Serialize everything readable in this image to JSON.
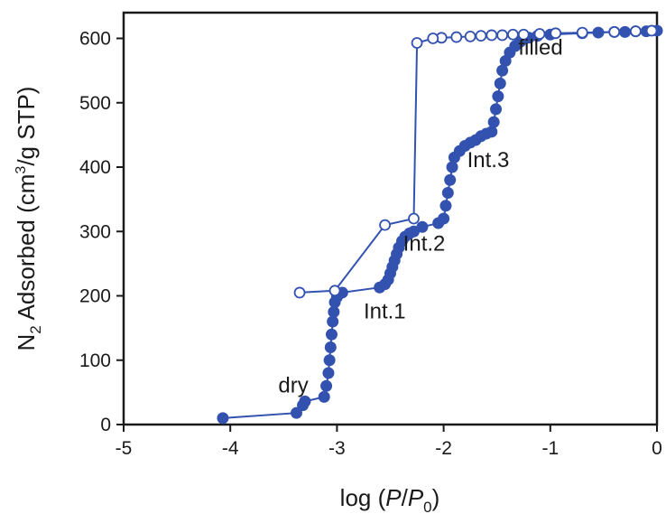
{
  "chart_data": {
    "type": "scatter",
    "xlim": [
      -5,
      0
    ],
    "ylim": [
      0,
      640
    ],
    "x_ticks": [
      "-5",
      "-4",
      "-3",
      "-2",
      "-1",
      "0"
    ],
    "y_ticks": [
      "0",
      "100",
      "200",
      "300",
      "400",
      "500",
      "600"
    ],
    "xlabel": {
      "prefix": "log (",
      "italic_main": "P",
      "slash": "/",
      "italic_sub_base": "P",
      "subscript": "0",
      "suffix": ")"
    },
    "ylabel": {
      "base": "N",
      "base_sub": "2",
      "mid": " Adsorbed (cm",
      "sup": "3",
      "suffix": "/g STP)"
    },
    "grid": false,
    "legend": "none",
    "colors": {
      "series": "#3352b0",
      "axis": "#1a1a1a"
    },
    "annotations": [
      {
        "text": "dry",
        "x": -3.55,
        "y": 50
      },
      {
        "text": "Int.1",
        "x": -2.75,
        "y": 165
      },
      {
        "text": "Int.2",
        "x": -2.38,
        "y": 270
      },
      {
        "text": "Int.3",
        "x": -1.78,
        "y": 400
      },
      {
        "text": "filled",
        "x": -1.3,
        "y": 575
      }
    ],
    "series": [
      {
        "marker": "filled",
        "points": [
          [
            -4.07,
            10
          ],
          [
            -3.38,
            18
          ],
          [
            -3.32,
            30
          ],
          [
            -3.3,
            36
          ],
          [
            -3.12,
            43
          ],
          [
            -3.1,
            60
          ],
          [
            -3.08,
            80
          ],
          [
            -3.07,
            100
          ],
          [
            -3.06,
            120
          ],
          [
            -3.05,
            140
          ],
          [
            -3.04,
            160
          ],
          [
            -3.03,
            175
          ],
          [
            -3.02,
            190
          ],
          [
            -3.0,
            198
          ],
          [
            -2.95,
            205
          ],
          [
            -2.6,
            213
          ],
          [
            -2.55,
            218
          ],
          [
            -2.52,
            225
          ],
          [
            -2.5,
            235
          ],
          [
            -2.48,
            245
          ],
          [
            -2.46,
            255
          ],
          [
            -2.44,
            265
          ],
          [
            -2.42,
            275
          ],
          [
            -2.39,
            285
          ],
          [
            -2.36,
            292
          ],
          [
            -2.32,
            297
          ],
          [
            -2.28,
            300
          ],
          [
            -2.2,
            307
          ],
          [
            -2.05,
            313
          ],
          [
            -2.0,
            320
          ],
          [
            -1.98,
            340
          ],
          [
            -1.96,
            360
          ],
          [
            -1.94,
            380
          ],
          [
            -1.92,
            400
          ],
          [
            -1.9,
            415
          ],
          [
            -1.85,
            425
          ],
          [
            -1.8,
            433
          ],
          [
            -1.75,
            438
          ],
          [
            -1.7,
            442
          ],
          [
            -1.65,
            448
          ],
          [
            -1.6,
            452
          ],
          [
            -1.55,
            455
          ],
          [
            -1.53,
            470
          ],
          [
            -1.51,
            490
          ],
          [
            -1.49,
            510
          ],
          [
            -1.47,
            530
          ],
          [
            -1.45,
            550
          ],
          [
            -1.42,
            565
          ],
          [
            -1.38,
            578
          ],
          [
            -1.33,
            588
          ],
          [
            -1.28,
            595
          ],
          [
            -1.2,
            601
          ],
          [
            -1.12,
            604
          ],
          [
            -1.0,
            606
          ],
          [
            -0.7,
            608
          ],
          [
            -0.55,
            609
          ],
          [
            -0.4,
            610
          ],
          [
            -0.3,
            610
          ],
          [
            -0.2,
            611
          ],
          [
            -0.1,
            611
          ],
          [
            0.0,
            612
          ]
        ]
      },
      {
        "marker": "open",
        "points": [
          [
            -0.05,
            612
          ],
          [
            -0.2,
            611
          ],
          [
            -0.4,
            610
          ],
          [
            -0.7,
            609
          ],
          [
            -0.95,
            608
          ],
          [
            -1.1,
            607
          ],
          [
            -1.25,
            606
          ],
          [
            -1.35,
            606
          ],
          [
            -1.45,
            605
          ],
          [
            -1.55,
            605
          ],
          [
            -1.65,
            604
          ],
          [
            -1.75,
            603
          ],
          [
            -1.88,
            602
          ],
          [
            -2.02,
            601
          ],
          [
            -2.1,
            600
          ],
          [
            -2.25,
            593
          ],
          [
            -2.28,
            320
          ],
          [
            -2.55,
            310
          ],
          [
            -3.02,
            208
          ],
          [
            -3.35,
            205
          ]
        ]
      }
    ]
  }
}
